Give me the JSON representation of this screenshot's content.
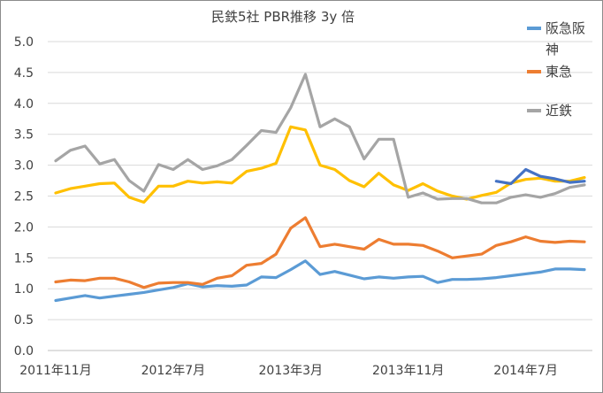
{
  "chart_data": {
    "type": "line",
    "title": "民鉄5社 PBR推移 3y 倍",
    "xlabel": "",
    "ylabel": "",
    "ylim": [
      0,
      5.0
    ],
    "y_ticks": [
      "0.0",
      "0.5",
      "1.0",
      "1.5",
      "2.0",
      "2.5",
      "3.0",
      "3.5",
      "4.0",
      "4.5",
      "5.0"
    ],
    "x_tick_labels": [
      {
        "index": 0,
        "label": "2011年11月"
      },
      {
        "index": 8,
        "label": "2012年7月"
      },
      {
        "index": 16,
        "label": "2013年3月"
      },
      {
        "index": 24,
        "label": "2013年11月"
      },
      {
        "index": 32,
        "label": "2014年7月"
      }
    ],
    "x_count": 37,
    "grid": true,
    "legend_position": "right",
    "series": [
      {
        "name": "阪急阪\n神",
        "color": "#5b9bd5",
        "values": [
          0.81,
          0.85,
          0.89,
          0.85,
          0.88,
          0.91,
          0.94,
          0.98,
          1.02,
          1.08,
          1.03,
          1.05,
          1.04,
          1.06,
          1.19,
          1.18,
          1.31,
          1.45,
          1.23,
          1.28,
          1.22,
          1.16,
          1.19,
          1.17,
          1.19,
          1.2,
          1.1,
          1.15,
          1.15,
          1.16,
          1.18,
          1.21,
          1.24,
          1.27,
          1.32,
          1.32,
          1.31
        ]
      },
      {
        "name": "東急",
        "color": "#ed7d31",
        "values": [
          1.11,
          1.14,
          1.13,
          1.17,
          1.17,
          1.11,
          1.02,
          1.09,
          1.1,
          1.1,
          1.07,
          1.17,
          1.21,
          1.38,
          1.41,
          1.56,
          1.98,
          2.15,
          1.68,
          1.72,
          1.68,
          1.64,
          1.8,
          1.72,
          1.72,
          1.7,
          1.61,
          1.5,
          1.53,
          1.56,
          1.7,
          1.76,
          1.84,
          1.77,
          1.75,
          1.77,
          1.76
        ]
      },
      {
        "name": "",
        "color": "#ffc000",
        "values": [
          2.55,
          2.62,
          2.66,
          2.7,
          2.71,
          2.48,
          2.4,
          2.66,
          2.66,
          2.74,
          2.71,
          2.73,
          2.71,
          2.9,
          2.95,
          3.03,
          3.62,
          3.57,
          3.0,
          2.93,
          2.75,
          2.65,
          2.87,
          2.68,
          2.59,
          2.7,
          2.58,
          2.5,
          2.45,
          2.51,
          2.56,
          2.71,
          2.77,
          2.79,
          2.74,
          2.74,
          2.8
        ]
      },
      {
        "name": "近鉄",
        "color": "#a5a5a5",
        "values": [
          3.07,
          3.24,
          3.31,
          3.02,
          3.09,
          2.75,
          2.58,
          3.01,
          2.93,
          3.09,
          2.93,
          2.99,
          3.09,
          3.32,
          3.56,
          3.53,
          3.93,
          4.47,
          3.62,
          3.75,
          3.62,
          3.1,
          3.42,
          3.42,
          2.48,
          2.55,
          2.45,
          2.46,
          2.46,
          2.39,
          2.39,
          2.48,
          2.52,
          2.48,
          2.54,
          2.64,
          2.68
        ]
      },
      {
        "name": "",
        "color": "#4472c4",
        "start_index": 30,
        "values": [
          2.74,
          2.7,
          2.93,
          2.82,
          2.78,
          2.72,
          2.74
        ]
      }
    ],
    "legend": [
      {
        "label": "阪急阪",
        "label2": "神",
        "color": "#5b9bd5"
      },
      {
        "label": "東急",
        "color": "#ed7d31"
      },
      {
        "label": "近鉄",
        "color": "#a5a5a5"
      }
    ]
  }
}
